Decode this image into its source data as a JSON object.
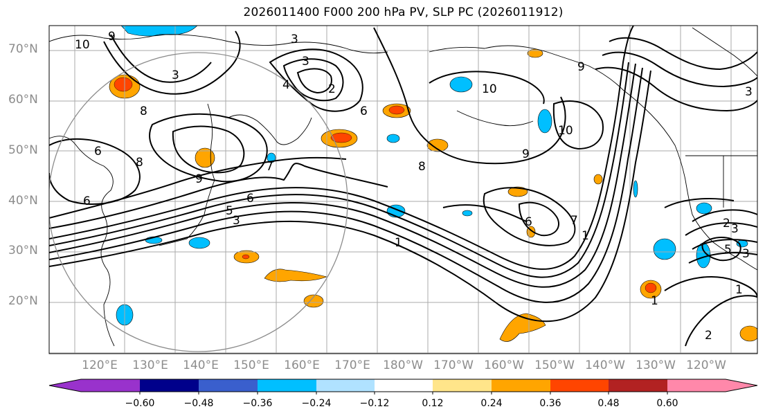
{
  "title": "2026011400 F000 200 hPa PV, SLP PC (2026011912)",
  "lat_labels": [
    "70°N",
    "60°N",
    "50°N",
    "40°N",
    "30°N",
    "20°N"
  ],
  "lon_labels": [
    "120°E",
    "130°E",
    "140°E",
    "150°E",
    "160°E",
    "170°E",
    "180°W",
    "170°W",
    "160°W",
    "150°W",
    "140°W",
    "130°W",
    "120°W"
  ],
  "colorbar": {
    "ticks": [
      "−0.60",
      "−0.48",
      "−0.36",
      "−0.24",
      "−0.12",
      "0.12",
      "0.24",
      "0.36",
      "0.48",
      "0.60"
    ],
    "colors": [
      "#9932cc",
      "#00008b",
      "#3a5fcd",
      "#00bfff",
      "#b0e2ff",
      "#ffffff",
      "#ffe58a",
      "#ffa500",
      "#ff4500",
      "#b22222",
      "#ff88aa"
    ]
  },
  "contour_labels": [
    "10",
    "9",
    "3",
    "3",
    "3",
    "2",
    "4",
    "8",
    "6",
    "6",
    "8",
    "9",
    "6",
    "6",
    "7",
    "5",
    "3",
    "1",
    "10",
    "9",
    "10",
    "9",
    "8",
    "6",
    "1",
    "7",
    "2",
    "5",
    "1",
    "1",
    "2",
    "3",
    "3",
    "3"
  ],
  "shading": {
    "positive_color": "#ffa500",
    "strong_color": "#ff4500",
    "negative_color": "#00bfff",
    "focus_circle_color": "#8c8c8c"
  }
}
